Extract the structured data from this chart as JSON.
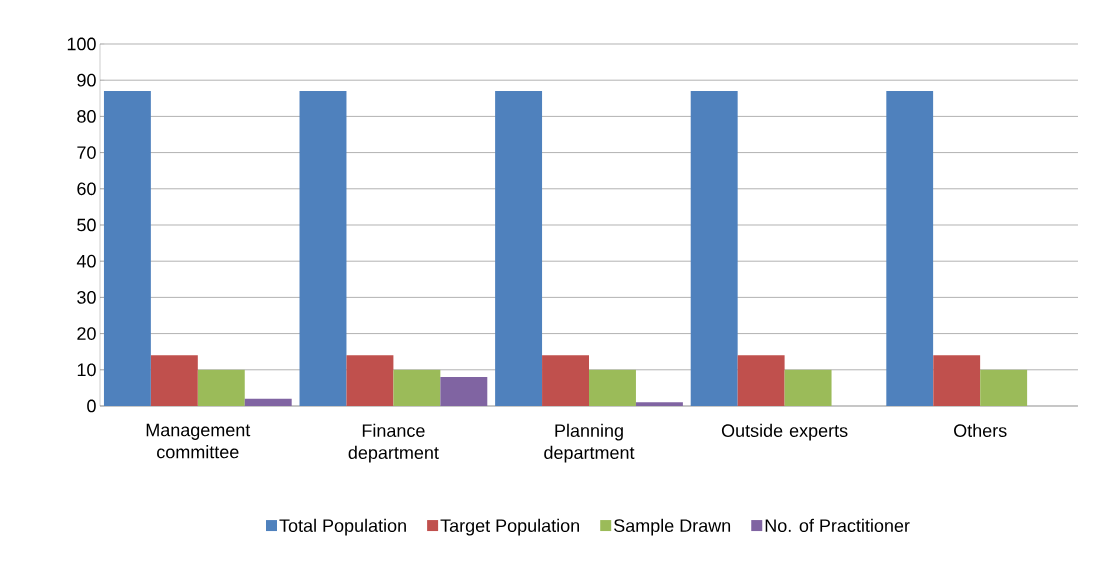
{
  "chart_data": {
    "type": "bar",
    "categories": [
      "Management committee",
      "Finance department",
      "Planning department",
      "Outside experts",
      "Others"
    ],
    "series": [
      {
        "name": "Total Population",
        "color": "#4f81bd",
        "values": [
          87,
          87,
          87,
          87,
          87
        ]
      },
      {
        "name": "Target Population",
        "color": "#c0504d",
        "values": [
          14,
          14,
          14,
          14,
          14
        ]
      },
      {
        "name": "Sample Drawn",
        "color": "#9bbb59",
        "values": [
          10,
          10,
          10,
          10,
          10
        ]
      },
      {
        "name": "No. of Practitioner",
        "color": "#8064a2",
        "values": [
          2,
          8,
          1,
          0,
          0
        ]
      }
    ],
    "ylim": [
      0,
      100
    ],
    "yticks": [
      0,
      10,
      20,
      30,
      40,
      50,
      60,
      70,
      80,
      90,
      100
    ],
    "grid": "y",
    "legend": "bottom"
  }
}
